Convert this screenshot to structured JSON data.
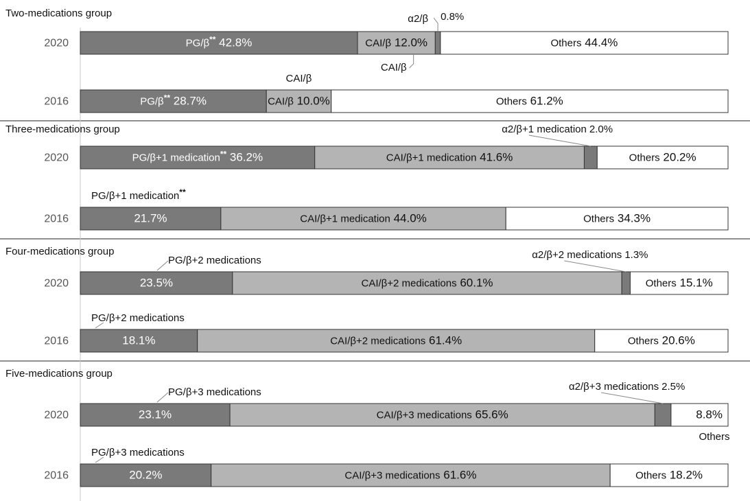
{
  "chart_data": {
    "type": "bar",
    "orientation": "horizontal",
    "stacked": true,
    "xlim": [
      0,
      100
    ],
    "grid": false,
    "groups": [
      {
        "title": "Two-medications group",
        "bars": [
          {
            "year": "2020",
            "segments": [
              {
                "name": "PG/β",
                "stars": "**",
                "value": 42.8,
                "display": "42.8%",
                "color": "#7a7a7a",
                "label": "inside"
              },
              {
                "name": "CAI/β",
                "value": 12.0,
                "display": "12.0%",
                "color": "#b4b4b4",
                "label": "inside",
                "callout_below": "CAI/β"
              },
              {
                "name": "α2/β",
                "value": 0.8,
                "display": "0.8%",
                "color": "#7a7a7a",
                "label": "callout_above"
              },
              {
                "name": "Others",
                "value": 44.4,
                "display": "44.4%",
                "color": "#ffffff",
                "label": "inside"
              }
            ]
          },
          {
            "year": "2016",
            "segments": [
              {
                "name": "PG/β",
                "stars": "**",
                "value": 28.7,
                "display": "28.7%",
                "color": "#7a7a7a",
                "label": "inside"
              },
              {
                "name": "CAI/β",
                "value": 10.0,
                "display": "10.0%",
                "color": "#b4b4b4",
                "label": "inside",
                "name_above": "CAI/β"
              },
              {
                "name": "Others",
                "value": 61.2,
                "display": "61.2%",
                "color": "#ffffff",
                "label": "inside"
              }
            ]
          }
        ]
      },
      {
        "title": "Three-medications group",
        "bars": [
          {
            "year": "2020",
            "segments": [
              {
                "name": "PG/β+1 medication",
                "stars": "**",
                "value": 36.2,
                "display": "36.2%",
                "color": "#7a7a7a",
                "label": "inside"
              },
              {
                "name": "CAI/β+1 medication",
                "value": 41.6,
                "display": "41.6%",
                "color": "#b4b4b4",
                "label": "inside"
              },
              {
                "name": "α2/β+1 medication",
                "value": 2.0,
                "display": "2.0%",
                "color": "#7a7a7a",
                "label": "callout_above"
              },
              {
                "name": "Others",
                "value": 20.2,
                "display": "20.2%",
                "color": "#ffffff",
                "label": "inside"
              }
            ]
          },
          {
            "year": "2016",
            "segments": [
              {
                "name": "PG/β+1 medication",
                "stars": "**",
                "value": 21.7,
                "display": "21.7%",
                "color": "#7a7a7a",
                "label": "value_only",
                "name_above": "PG/β+1 medication"
              },
              {
                "name": "CAI/β+1 medication",
                "value": 44.0,
                "display": "44.0%",
                "color": "#b4b4b4",
                "label": "inside"
              },
              {
                "name": "Others",
                "value": 34.3,
                "display": "34.3%",
                "color": "#ffffff",
                "label": "inside"
              }
            ]
          }
        ]
      },
      {
        "title": "Four-medications group",
        "bars": [
          {
            "year": "2020",
            "segments": [
              {
                "name": "PG/β+2 medications",
                "value": 23.5,
                "display": "23.5%",
                "color": "#7a7a7a",
                "label": "value_only",
                "name_above": "PG/β+2 medications"
              },
              {
                "name": "CAI/β+2 medications",
                "value": 60.1,
                "display": "60.1%",
                "color": "#b4b4b4",
                "label": "inside"
              },
              {
                "name": "α2/β+2 medications",
                "value": 1.3,
                "display": "1.3%",
                "color": "#7a7a7a",
                "label": "callout_above"
              },
              {
                "name": "Others",
                "value": 15.1,
                "display": "15.1%",
                "color": "#ffffff",
                "label": "inside"
              }
            ]
          },
          {
            "year": "2016",
            "segments": [
              {
                "name": "PG/β+2 medications",
                "value": 18.1,
                "display": "18.1%",
                "color": "#7a7a7a",
                "label": "value_only",
                "name_above": "PG/β+2 medications"
              },
              {
                "name": "CAI/β+2 medications",
                "value": 61.4,
                "display": "61.4%",
                "color": "#b4b4b4",
                "label": "inside"
              },
              {
                "name": "Others",
                "value": 20.6,
                "display": "20.6%",
                "color": "#ffffff",
                "label": "inside"
              }
            ]
          }
        ]
      },
      {
        "title": "Five-medications group",
        "bars": [
          {
            "year": "2020",
            "segments": [
              {
                "name": "PG/β+3 medications",
                "value": 23.1,
                "display": "23.1%",
                "color": "#7a7a7a",
                "label": "value_only",
                "name_above": "PG/β+3 medications"
              },
              {
                "name": "CAI/β+3 medications",
                "value": 65.6,
                "display": "65.6%",
                "color": "#b4b4b4",
                "label": "inside"
              },
              {
                "name": "α2/β+3 medications",
                "value": 2.5,
                "display": "2.5%",
                "color": "#7a7a7a",
                "label": "callout_above"
              },
              {
                "name": "Others",
                "value": 8.8,
                "display": "8.8%",
                "color": "#ffffff",
                "label": "value_only",
                "name_below": "Others"
              }
            ]
          },
          {
            "year": "2016",
            "segments": [
              {
                "name": "PG/β+3 medications",
                "value": 20.2,
                "display": "20.2%",
                "color": "#7a7a7a",
                "label": "value_only",
                "name_above": "PG/β+3 medications"
              },
              {
                "name": "CAI/β+3 medications",
                "value": 61.6,
                "display": "61.6%",
                "color": "#b4b4b4",
                "label": "inside"
              },
              {
                "name": "Others",
                "value": 18.2,
                "display": "18.2%",
                "color": "#ffffff",
                "label": "inside"
              }
            ]
          }
        ]
      }
    ]
  }
}
